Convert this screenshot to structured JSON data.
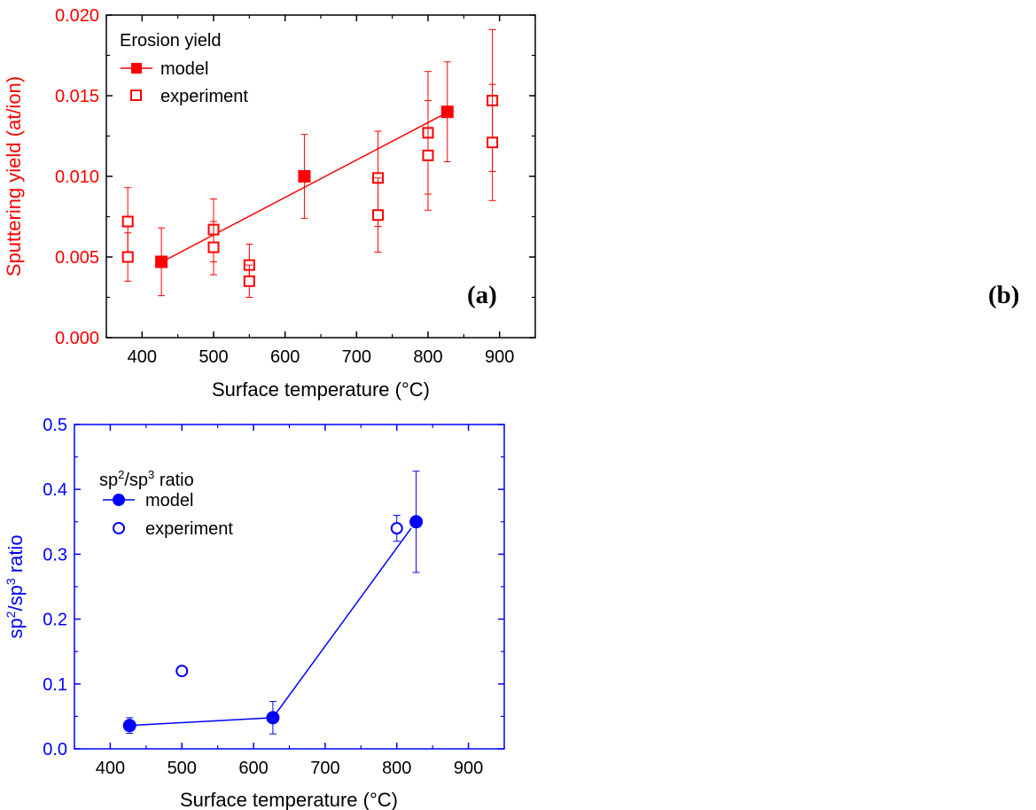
{
  "chart_data": [
    {
      "type": "scatter",
      "panel_label": "(a)",
      "color": "#ff0000",
      "xlabel": "Surface temperature (°C)",
      "ylabel": "Sputtering yield (at/ion)",
      "xlim": [
        350,
        950
      ],
      "ylim": [
        0,
        0.02
      ],
      "xticks": [
        400,
        500,
        600,
        700,
        800,
        900
      ],
      "yticks": [
        0.0,
        0.005,
        0.01,
        0.015,
        0.02
      ],
      "ytick_labels": [
        "0.000",
        "0.005",
        "0.010",
        "0.015",
        "0.020"
      ],
      "legend": {
        "title": "Erosion yield",
        "placement": "top-left",
        "entries": [
          "model",
          "experiment"
        ]
      },
      "series": [
        {
          "name": "model",
          "marker": "filled-square",
          "line": true,
          "line_x": [
            428,
            820
          ],
          "line_y": [
            0.0047,
            0.0138
          ],
          "points": [
            {
              "x": 427,
              "y": 0.0047,
              "err_low": 0.0026,
              "err_high": 0.0068
            },
            {
              "x": 627,
              "y": 0.01,
              "err_low": 0.0074,
              "err_high": 0.0126
            },
            {
              "x": 827,
              "y": 0.014,
              "err_low": 0.0109,
              "err_high": 0.0171
            }
          ]
        },
        {
          "name": "experiment",
          "marker": "open-square",
          "line": false,
          "points": [
            {
              "x": 380,
              "y": 0.0072,
              "err_low": 0.005,
              "err_high": 0.0093
            },
            {
              "x": 380,
              "y": 0.005,
              "err_low": 0.0035,
              "err_high": 0.0065
            },
            {
              "x": 500,
              "y": 0.0067,
              "err_low": 0.0047,
              "err_high": 0.0086
            },
            {
              "x": 500,
              "y": 0.0056,
              "err_low": 0.0039,
              "err_high": 0.0072
            },
            {
              "x": 550,
              "y": 0.0045,
              "err_low": 0.0032,
              "err_high": 0.0058
            },
            {
              "x": 550,
              "y": 0.0035,
              "err_low": 0.0025,
              "err_high": 0.0045
            },
            {
              "x": 730,
              "y": 0.0099,
              "err_low": 0.0069,
              "err_high": 0.0128
            },
            {
              "x": 730,
              "y": 0.0076,
              "err_low": 0.0053,
              "err_high": 0.0099
            },
            {
              "x": 800,
              "y": 0.0127,
              "err_low": 0.0089,
              "err_high": 0.0165
            },
            {
              "x": 800,
              "y": 0.0113,
              "err_low": 0.0079,
              "err_high": 0.0147
            },
            {
              "x": 890,
              "y": 0.0147,
              "err_low": 0.0103,
              "err_high": 0.0191
            },
            {
              "x": 890,
              "y": 0.0121,
              "err_low": 0.0085,
              "err_high": 0.0157
            }
          ]
        }
      ]
    },
    {
      "type": "scatter",
      "panel_label": "(b)",
      "color": "#0000ff",
      "xlabel": "Surface temperature (°C)",
      "ylabel_main": "sp",
      "ylabel_sup1": "2",
      "ylabel_mid": "/sp",
      "ylabel_sup2": "3",
      "ylabel_tail": " ratio",
      "xlim": [
        350,
        950
      ],
      "ylim": [
        0,
        0.5
      ],
      "xticks": [
        400,
        500,
        600,
        700,
        800,
        900
      ],
      "yticks": [
        0.0,
        0.1,
        0.2,
        0.3,
        0.4,
        0.5
      ],
      "ytick_labels": [
        "0.0",
        "0.1",
        "0.2",
        "0.3",
        "0.4",
        "0.5"
      ],
      "legend": {
        "title_main": "sp",
        "title_sup1": "2",
        "title_mid": "/sp",
        "title_sup2": "3",
        "title_tail": " ratio",
        "placement": "top-left",
        "entries": [
          "model",
          "experiment"
        ]
      },
      "series": [
        {
          "name": "model",
          "marker": "filled-circle",
          "line": true,
          "line_x": [
            427,
            627,
            820
          ],
          "line_y": [
            0.036,
            0.048,
            0.34
          ],
          "points": [
            {
              "x": 427,
              "y": 0.036,
              "err_low": 0.024,
              "err_high": 0.048
            },
            {
              "x": 627,
              "y": 0.048,
              "err_low": 0.023,
              "err_high": 0.073
            },
            {
              "x": 827,
              "y": 0.35,
              "err_low": 0.272,
              "err_high": 0.428
            }
          ]
        },
        {
          "name": "experiment",
          "marker": "open-circle",
          "line": false,
          "points": [
            {
              "x": 500,
              "y": 0.12,
              "err_low": 0.116,
              "err_high": 0.124
            },
            {
              "x": 800,
              "y": 0.34,
              "err_low": 0.32,
              "err_high": 0.36
            }
          ]
        }
      ]
    }
  ]
}
